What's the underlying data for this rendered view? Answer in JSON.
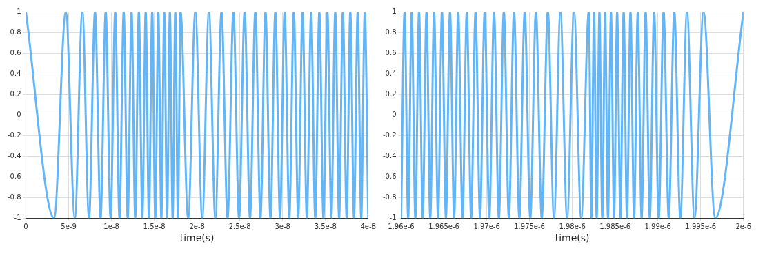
{
  "chart_data": [
    {
      "type": "line",
      "xlabel": "time(s)",
      "grid": true,
      "marker": "none",
      "line_style": "solid",
      "xlim": [
        0,
        4e-08
      ],
      "xticks": [
        {
          "value": 0,
          "label": "0"
        },
        {
          "value": 5e-09,
          "label": "5e-9"
        },
        {
          "value": 1e-08,
          "label": "1e-8"
        },
        {
          "value": 1.5e-08,
          "label": "1.5e-8"
        },
        {
          "value": 2e-08,
          "label": "2e-8"
        },
        {
          "value": 2.5e-08,
          "label": "2.5e-8"
        },
        {
          "value": 3e-08,
          "label": "3e-8"
        },
        {
          "value": 3.5e-08,
          "label": "3.5e-8"
        },
        {
          "value": 4e-08,
          "label": "4e-8"
        }
      ],
      "ylim": [
        -1,
        1
      ],
      "yticks": [
        -1,
        -0.8,
        -0.6,
        -0.4,
        -0.2,
        0,
        0.2,
        0.4,
        0.6,
        0.8,
        1
      ],
      "series": [
        {
          "color": "#64b5f6",
          "x": [
            0,
            3.3e-09,
            4.67e-09,
            5.72e-09,
            6.6e-09,
            7.38e-09,
            8.08e-09,
            8.73e-09,
            9.33e-09,
            9.9e-09,
            1.044e-08,
            1.094e-08,
            1.143e-08,
            1.19e-08,
            1.235e-08,
            1.278e-08,
            1.32e-08,
            1.361e-08,
            1.4e-08,
            1.438e-08,
            1.476e-08,
            1.512e-08,
            1.548e-08,
            1.583e-08,
            1.617e-08,
            1.65e-08,
            1.683e-08,
            1.715e-08,
            1.746e-08,
            1.777e-08,
            1.807e-08,
            1.896e-08,
            1.98e-08,
            2.061e-08,
            2.139e-08,
            2.214e-08,
            2.286e-08,
            2.357e-08,
            2.425e-08,
            2.491e-08,
            2.556e-08,
            2.619e-08,
            2.681e-08,
            2.741e-08,
            2.8e-08,
            2.858e-08,
            2.915e-08,
            2.97e-08,
            3.024e-08,
            3.078e-08,
            3.131e-08,
            3.182e-08,
            3.233e-08,
            3.283e-08,
            3.333e-08,
            3.381e-08,
            3.429e-08,
            3.477e-08,
            3.523e-08,
            3.569e-08,
            3.615e-08,
            3.66e-08,
            3.704e-08,
            3.748e-08,
            3.791e-08,
            3.834e-08,
            3.877e-08,
            3.918e-08,
            3.96e-08,
            4e-08
          ],
          "values": [
            1,
            -1,
            1,
            -1,
            1,
            -1,
            1,
            -1,
            1,
            -1,
            1,
            -1,
            1,
            -1,
            1,
            -1,
            1,
            -1,
            1,
            -1,
            1,
            -1,
            1,
            -1,
            1,
            -1,
            1,
            -1,
            1,
            -1,
            1,
            -1,
            1,
            -1,
            1,
            -1,
            1,
            -1,
            1,
            -1,
            1,
            -1,
            1,
            -1,
            1,
            -1,
            1,
            -1,
            1,
            -1,
            1,
            -1,
            1,
            -1,
            1,
            -1,
            1,
            -1,
            1,
            -1,
            1,
            -1,
            1,
            -1,
            1,
            -1,
            1,
            -1,
            1,
            -1
          ]
        }
      ]
    },
    {
      "type": "line",
      "xlabel": "time(s)",
      "grid": true,
      "marker": "none",
      "line_style": "solid",
      "xlim": [
        1.96e-06,
        2e-06
      ],
      "xticks": [
        {
          "value": 1.96e-06,
          "label": "1.96e-6"
        },
        {
          "value": 1.965e-06,
          "label": "1.965e-6"
        },
        {
          "value": 1.97e-06,
          "label": "1.97e-6"
        },
        {
          "value": 1.975e-06,
          "label": "1.975e-6"
        },
        {
          "value": 1.98e-06,
          "label": "1.98e-6"
        },
        {
          "value": 1.985e-06,
          "label": "1.985e-6"
        },
        {
          "value": 1.99e-06,
          "label": "1.99e-6"
        },
        {
          "value": 1.995e-06,
          "label": "1.995e-6"
        },
        {
          "value": 2e-06,
          "label": "2e-6"
        }
      ],
      "ylim": [
        -1,
        1
      ],
      "yticks": [
        -1,
        -0.8,
        -0.6,
        -0.4,
        -0.2,
        0,
        0.2,
        0.4,
        0.6,
        0.8,
        1
      ],
      "series": [
        {
          "color": "#64b5f6",
          "x": [
            1.96e-06,
            1.9604e-06,
            1.96082e-06,
            1.96123e-06,
            1.96166e-06,
            1.96209e-06,
            1.96252e-06,
            1.96296e-06,
            1.9634e-06,
            1.96385e-06,
            1.96431e-06,
            1.96477e-06,
            1.96523e-06,
            1.96571e-06,
            1.96619e-06,
            1.96667e-06,
            1.96717e-06,
            1.96767e-06,
            1.96818e-06,
            1.96869e-06,
            1.96922e-06,
            1.96976e-06,
            1.9703e-06,
            1.97085e-06,
            1.97142e-06,
            1.972e-06,
            1.97259e-06,
            1.97319e-06,
            1.97381e-06,
            1.97444e-06,
            1.97509e-06,
            1.97575e-06,
            1.97643e-06,
            1.97714e-06,
            1.97786e-06,
            1.97861e-06,
            1.97939e-06,
            1.9802e-06,
            1.98104e-06,
            1.98193e-06,
            1.98223e-06,
            1.98254e-06,
            1.98285e-06,
            1.98317e-06,
            1.9835e-06,
            1.98383e-06,
            1.98417e-06,
            1.98452e-06,
            1.98488e-06,
            1.98524e-06,
            1.98562e-06,
            1.986e-06,
            1.98639e-06,
            1.9868e-06,
            1.98722e-06,
            1.98765e-06,
            1.9881e-06,
            1.98857e-06,
            1.98906e-06,
            1.98956e-06,
            1.9901e-06,
            1.99067e-06,
            1.99127e-06,
            1.99192e-06,
            1.99262e-06,
            1.9934e-06,
            1.99428e-06,
            1.99533e-06,
            1.9967e-06,
            2e-06
          ],
          "values": [
            -1,
            1,
            -1,
            1,
            -1,
            1,
            -1,
            1,
            -1,
            1,
            -1,
            1,
            -1,
            1,
            -1,
            1,
            -1,
            1,
            -1,
            1,
            -1,
            1,
            -1,
            1,
            -1,
            1,
            -1,
            1,
            -1,
            1,
            -1,
            1,
            -1,
            1,
            -1,
            1,
            -1,
            1,
            -1,
            1,
            -1,
            1,
            -1,
            1,
            -1,
            1,
            -1,
            1,
            -1,
            1,
            -1,
            1,
            -1,
            1,
            -1,
            1,
            -1,
            1,
            -1,
            1,
            -1,
            1,
            -1,
            1,
            -1,
            1,
            -1,
            1,
            -1,
            1
          ]
        }
      ]
    }
  ]
}
